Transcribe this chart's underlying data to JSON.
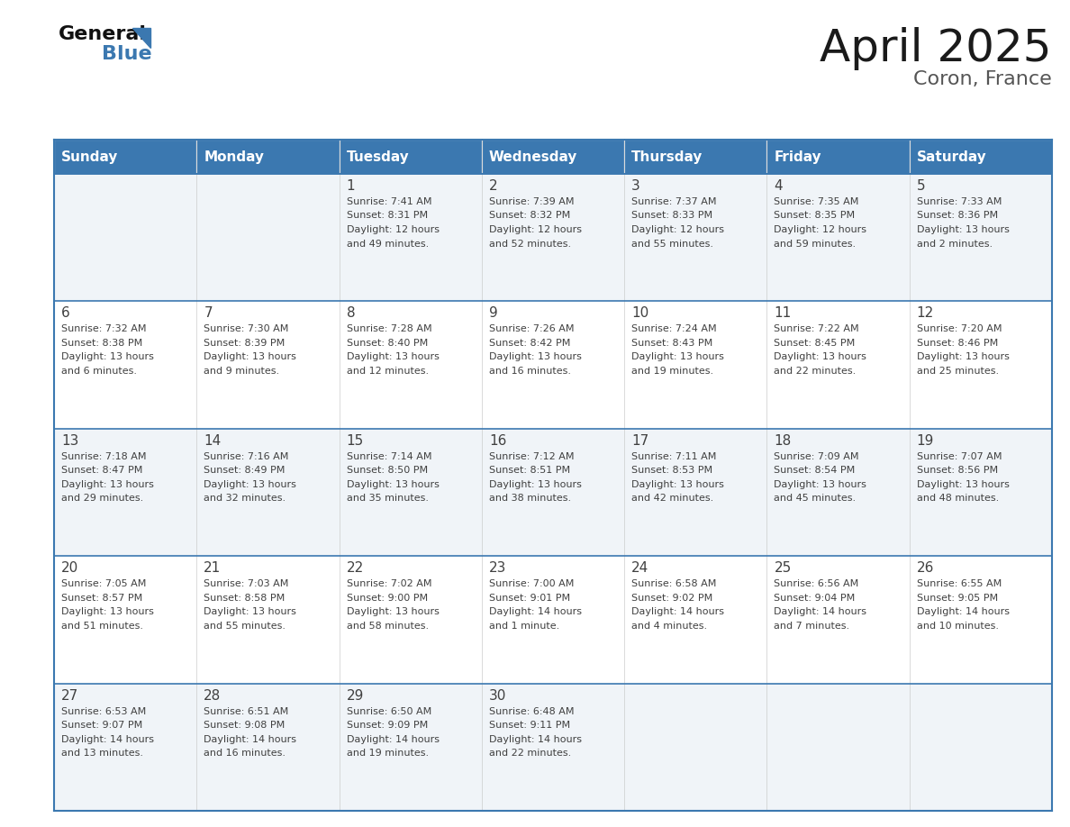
{
  "title": "April 2025",
  "subtitle": "Coron, France",
  "header_color": "#3b78b0",
  "header_text_color": "#ffffff",
  "weekdays": [
    "Sunday",
    "Monday",
    "Tuesday",
    "Wednesday",
    "Thursday",
    "Friday",
    "Saturday"
  ],
  "cell_bg_light": "#f0f4f8",
  "cell_bg_white": "#ffffff",
  "border_color": "#3b78b0",
  "text_color": "#404040",
  "title_color": "#1a1a1a",
  "subtitle_color": "#555555",
  "days": [
    {
      "day": null,
      "col": 0,
      "row": 0
    },
    {
      "day": null,
      "col": 1,
      "row": 0
    },
    {
      "day": 1,
      "col": 2,
      "row": 0,
      "sunrise": "7:41 AM",
      "sunset": "8:31 PM",
      "daylight": "12 hours and 49 minutes."
    },
    {
      "day": 2,
      "col": 3,
      "row": 0,
      "sunrise": "7:39 AM",
      "sunset": "8:32 PM",
      "daylight": "12 hours and 52 minutes."
    },
    {
      "day": 3,
      "col": 4,
      "row": 0,
      "sunrise": "7:37 AM",
      "sunset": "8:33 PM",
      "daylight": "12 hours and 55 minutes."
    },
    {
      "day": 4,
      "col": 5,
      "row": 0,
      "sunrise": "7:35 AM",
      "sunset": "8:35 PM",
      "daylight": "12 hours and 59 minutes."
    },
    {
      "day": 5,
      "col": 6,
      "row": 0,
      "sunrise": "7:33 AM",
      "sunset": "8:36 PM",
      "daylight": "13 hours and 2 minutes."
    },
    {
      "day": 6,
      "col": 0,
      "row": 1,
      "sunrise": "7:32 AM",
      "sunset": "8:38 PM",
      "daylight": "13 hours and 6 minutes."
    },
    {
      "day": 7,
      "col": 1,
      "row": 1,
      "sunrise": "7:30 AM",
      "sunset": "8:39 PM",
      "daylight": "13 hours and 9 minutes."
    },
    {
      "day": 8,
      "col": 2,
      "row": 1,
      "sunrise": "7:28 AM",
      "sunset": "8:40 PM",
      "daylight": "13 hours and 12 minutes."
    },
    {
      "day": 9,
      "col": 3,
      "row": 1,
      "sunrise": "7:26 AM",
      "sunset": "8:42 PM",
      "daylight": "13 hours and 16 minutes."
    },
    {
      "day": 10,
      "col": 4,
      "row": 1,
      "sunrise": "7:24 AM",
      "sunset": "8:43 PM",
      "daylight": "13 hours and 19 minutes."
    },
    {
      "day": 11,
      "col": 5,
      "row": 1,
      "sunrise": "7:22 AM",
      "sunset": "8:45 PM",
      "daylight": "13 hours and 22 minutes."
    },
    {
      "day": 12,
      "col": 6,
      "row": 1,
      "sunrise": "7:20 AM",
      "sunset": "8:46 PM",
      "daylight": "13 hours and 25 minutes."
    },
    {
      "day": 13,
      "col": 0,
      "row": 2,
      "sunrise": "7:18 AM",
      "sunset": "8:47 PM",
      "daylight": "13 hours and 29 minutes."
    },
    {
      "day": 14,
      "col": 1,
      "row": 2,
      "sunrise": "7:16 AM",
      "sunset": "8:49 PM",
      "daylight": "13 hours and 32 minutes."
    },
    {
      "day": 15,
      "col": 2,
      "row": 2,
      "sunrise": "7:14 AM",
      "sunset": "8:50 PM",
      "daylight": "13 hours and 35 minutes."
    },
    {
      "day": 16,
      "col": 3,
      "row": 2,
      "sunrise": "7:12 AM",
      "sunset": "8:51 PM",
      "daylight": "13 hours and 38 minutes."
    },
    {
      "day": 17,
      "col": 4,
      "row": 2,
      "sunrise": "7:11 AM",
      "sunset": "8:53 PM",
      "daylight": "13 hours and 42 minutes."
    },
    {
      "day": 18,
      "col": 5,
      "row": 2,
      "sunrise": "7:09 AM",
      "sunset": "8:54 PM",
      "daylight": "13 hours and 45 minutes."
    },
    {
      "day": 19,
      "col": 6,
      "row": 2,
      "sunrise": "7:07 AM",
      "sunset": "8:56 PM",
      "daylight": "13 hours and 48 minutes."
    },
    {
      "day": 20,
      "col": 0,
      "row": 3,
      "sunrise": "7:05 AM",
      "sunset": "8:57 PM",
      "daylight": "13 hours and 51 minutes."
    },
    {
      "day": 21,
      "col": 1,
      "row": 3,
      "sunrise": "7:03 AM",
      "sunset": "8:58 PM",
      "daylight": "13 hours and 55 minutes."
    },
    {
      "day": 22,
      "col": 2,
      "row": 3,
      "sunrise": "7:02 AM",
      "sunset": "9:00 PM",
      "daylight": "13 hours and 58 minutes."
    },
    {
      "day": 23,
      "col": 3,
      "row": 3,
      "sunrise": "7:00 AM",
      "sunset": "9:01 PM",
      "daylight": "14 hours and 1 minute."
    },
    {
      "day": 24,
      "col": 4,
      "row": 3,
      "sunrise": "6:58 AM",
      "sunset": "9:02 PM",
      "daylight": "14 hours and 4 minutes."
    },
    {
      "day": 25,
      "col": 5,
      "row": 3,
      "sunrise": "6:56 AM",
      "sunset": "9:04 PM",
      "daylight": "14 hours and 7 minutes."
    },
    {
      "day": 26,
      "col": 6,
      "row": 3,
      "sunrise": "6:55 AM",
      "sunset": "9:05 PM",
      "daylight": "14 hours and 10 minutes."
    },
    {
      "day": 27,
      "col": 0,
      "row": 4,
      "sunrise": "6:53 AM",
      "sunset": "9:07 PM",
      "daylight": "14 hours and 13 minutes."
    },
    {
      "day": 28,
      "col": 1,
      "row": 4,
      "sunrise": "6:51 AM",
      "sunset": "9:08 PM",
      "daylight": "14 hours and 16 minutes."
    },
    {
      "day": 29,
      "col": 2,
      "row": 4,
      "sunrise": "6:50 AM",
      "sunset": "9:09 PM",
      "daylight": "14 hours and 19 minutes."
    },
    {
      "day": 30,
      "col": 3,
      "row": 4,
      "sunrise": "6:48 AM",
      "sunset": "9:11 PM",
      "daylight": "14 hours and 22 minutes."
    },
    {
      "day": null,
      "col": 4,
      "row": 4
    },
    {
      "day": null,
      "col": 5,
      "row": 4
    },
    {
      "day": null,
      "col": 6,
      "row": 4
    }
  ]
}
